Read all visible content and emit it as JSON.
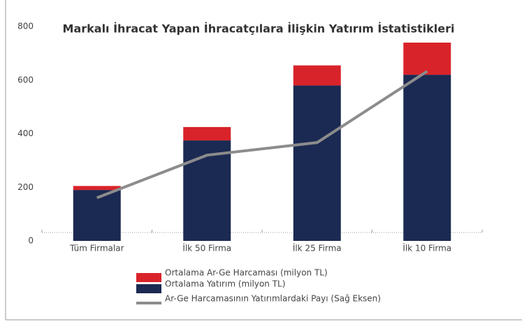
{
  "chart_data": {
    "type": "bar",
    "title": "Markalı İhracat Yapan İhracatçılara İlişkin Yatırım İstatistikleri",
    "categories": [
      "Tüm Firmalar",
      "İlk 50 Firma",
      "İlk 25 Firma",
      "İlk 10 Firma"
    ],
    "series": [
      {
        "name": "Ortalama Yatırım (milyon TL)",
        "color": "#1b2a52",
        "values": [
          190,
          375,
          580,
          620
        ]
      },
      {
        "name": "Ortalama Ar-Ge Harcaması (milyon TL)",
        "color": "#d9232a",
        "values": [
          15,
          50,
          75,
          120
        ]
      },
      {
        "name": "Ar-Ge Harcamasının Yatırımlardaki Payı (Sağ Eksen)",
        "color": "#8c8c8c",
        "type": "line",
        "values": [
          161,
          320,
          367,
          633
        ]
      }
    ],
    "stacked": true,
    "ylim": [
      0,
      800
    ],
    "yticks": [
      0,
      200,
      400,
      600,
      800
    ],
    "grid": false
  }
}
